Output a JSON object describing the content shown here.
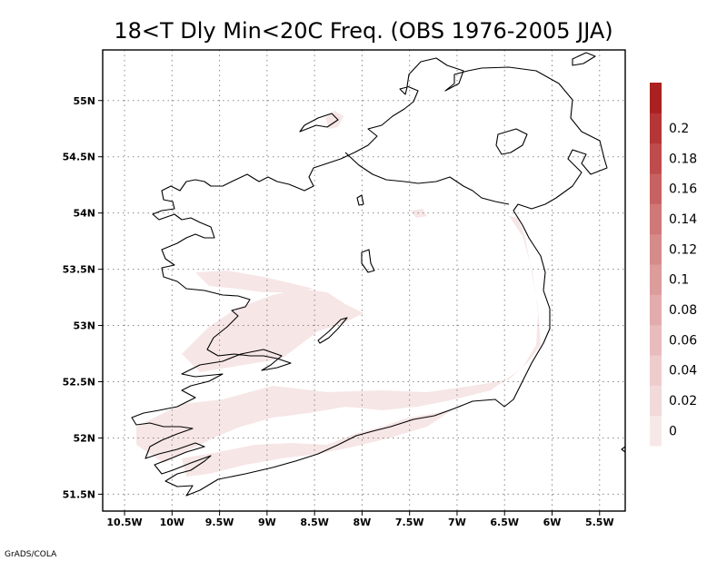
{
  "title": "18<T Dly Min<20C Freq. (OBS 1976-2005 JJA)",
  "footer": "GrADS/COLA",
  "map": {
    "lon_range": [
      -10.73,
      -5.23
    ],
    "lat_range": [
      51.35,
      55.45
    ],
    "lon_ticks": [
      {
        "value": -10.5,
        "label": "10.5W"
      },
      {
        "value": -10.0,
        "label": "10W"
      },
      {
        "value": -9.5,
        "label": "9.5W"
      },
      {
        "value": -9.0,
        "label": "9W"
      },
      {
        "value": -8.5,
        "label": "8.5W"
      },
      {
        "value": -8.0,
        "label": "8W"
      },
      {
        "value": -7.5,
        "label": "7.5W"
      },
      {
        "value": -7.0,
        "label": "7W"
      },
      {
        "value": -6.5,
        "label": "6.5W"
      },
      {
        "value": -6.0,
        "label": "6W"
      },
      {
        "value": -5.5,
        "label": "5.5W"
      }
    ],
    "lat_ticks": [
      {
        "value": 51.5,
        "label": "51.5N"
      },
      {
        "value": 52.0,
        "label": "52N"
      },
      {
        "value": 52.5,
        "label": "52.5N"
      },
      {
        "value": 53.0,
        "label": "53N"
      },
      {
        "value": 53.5,
        "label": "53.5N"
      },
      {
        "value": 54.0,
        "label": "54N"
      },
      {
        "value": 54.5,
        "label": "54.5N"
      },
      {
        "value": 55.0,
        "label": "55N"
      }
    ],
    "grid": true,
    "grid_style": "dotted",
    "field_color": "#f7e6e6"
  },
  "colorbar": {
    "labels": [
      "0",
      "0.02",
      "0.04",
      "0.06",
      "0.08",
      "0.1",
      "0.12",
      "0.14",
      "0.16",
      "0.18",
      "0.2"
    ],
    "colors": [
      "#f7e8e8",
      "#f3dada",
      "#eecccc",
      "#e8bcbc",
      "#e2acac",
      "#dc9c9c",
      "#d68a8a",
      "#cf7878",
      "#c76262",
      "#be4c4c",
      "#b53636",
      "#ab2020"
    ]
  }
}
